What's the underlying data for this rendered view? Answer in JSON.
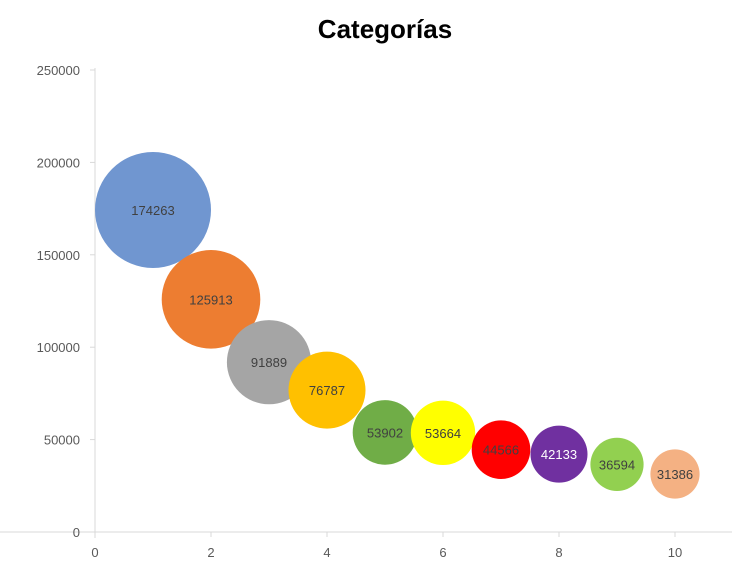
{
  "chart_data": {
    "type": "bubble",
    "title": "Categorías",
    "xlabel": "",
    "ylabel": "",
    "xlim": [
      0,
      11
    ],
    "ylim": [
      0,
      250000
    ],
    "x_ticks": [
      0,
      2,
      4,
      6,
      8,
      10
    ],
    "y_ticks": [
      0,
      50000,
      100000,
      150000,
      200000,
      250000
    ],
    "grid": false,
    "legend": "none",
    "points": [
      {
        "x": 1,
        "y": 174263,
        "label": "174263",
        "color": "#7096D0",
        "text_color": "#404040"
      },
      {
        "x": 2,
        "y": 125913,
        "label": "125913",
        "color": "#ED7D31",
        "text_color": "#404040"
      },
      {
        "x": 3,
        "y": 91889,
        "label": "91889",
        "color": "#A5A5A5",
        "text_color": "#404040"
      },
      {
        "x": 4,
        "y": 76787,
        "label": "76787",
        "color": "#FFC000",
        "text_color": "#404040"
      },
      {
        "x": 5,
        "y": 53902,
        "label": "53902",
        "color": "#70AD47",
        "text_color": "#404040"
      },
      {
        "x": 6,
        "y": 53664,
        "label": "53664",
        "color": "#FFFF00",
        "text_color": "#404040"
      },
      {
        "x": 7,
        "y": 44566,
        "label": "44566",
        "color": "#FF0000",
        "text_color": "#404040"
      },
      {
        "x": 8,
        "y": 42133,
        "label": "42133",
        "color": "#7030A0",
        "text_color": "#FFFFFF"
      },
      {
        "x": 9,
        "y": 36594,
        "label": "36594",
        "color": "#92D050",
        "text_color": "#404040"
      },
      {
        "x": 10,
        "y": 31386,
        "label": "31386",
        "color": "#F4B183",
        "text_color": "#404040"
      }
    ]
  }
}
